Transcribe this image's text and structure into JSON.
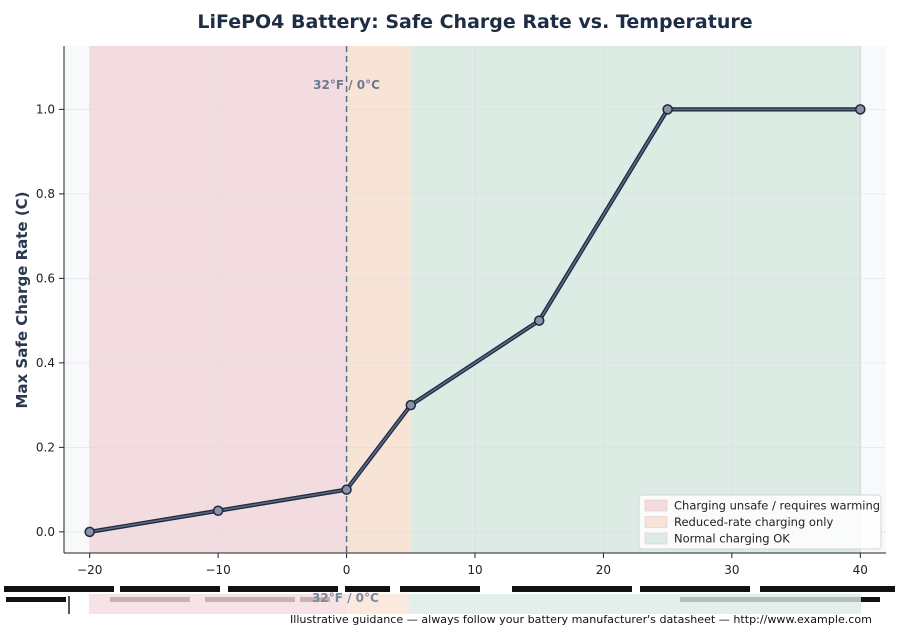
{
  "chart_data": {
    "type": "line",
    "title": "LiFePO4 Battery: Safe Charge Rate vs. Temperature",
    "ylabel": "Max Safe Charge Rate (C)",
    "xlabel": "",
    "xlim": [
      -22,
      42
    ],
    "ylim": [
      -0.05,
      1.15
    ],
    "x_ticks": [
      -20,
      -10,
      0,
      10,
      20,
      30,
      40
    ],
    "y_ticks": [
      0.0,
      0.2,
      0.4,
      0.6,
      0.8,
      1.0
    ],
    "x_tick_labels": [
      "−20",
      "−10",
      "0",
      "10",
      "20",
      "30",
      "40"
    ],
    "y_tick_labels": [
      "0.0",
      "0.2",
      "0.4",
      "0.6",
      "0.8",
      "1.0"
    ],
    "grid": true,
    "series": [
      {
        "x": [
          -20,
          -10,
          0,
          5,
          15,
          25,
          40
        ],
        "y": [
          0.0,
          0.05,
          0.1,
          0.3,
          0.5,
          1.0,
          1.0
        ],
        "color": "#2f3f5c",
        "marker_fill": "#8a93a6"
      }
    ],
    "shaded_regions": [
      {
        "x0": -20,
        "x1": 0,
        "label": "Charging unsafe / requires warming",
        "color": "#f3dcdf"
      },
      {
        "x0": 0,
        "x1": 5,
        "label": "Reduced-rate charging only",
        "color": "#f7e4d6"
      },
      {
        "x0": 5,
        "x1": 40,
        "label": "Normal charging OK",
        "color": "#dcebe3"
      }
    ],
    "vline": {
      "x": 0,
      "label": "32°F / 0°C",
      "color": "#5f6f8a"
    },
    "legend_position": "lower-right",
    "footer_garbled_label": "32°F / 0°C",
    "footer_garbled_note": "Illustrative guidance — always follow your battery manufacturer's datasheet — http://www.example.com"
  }
}
